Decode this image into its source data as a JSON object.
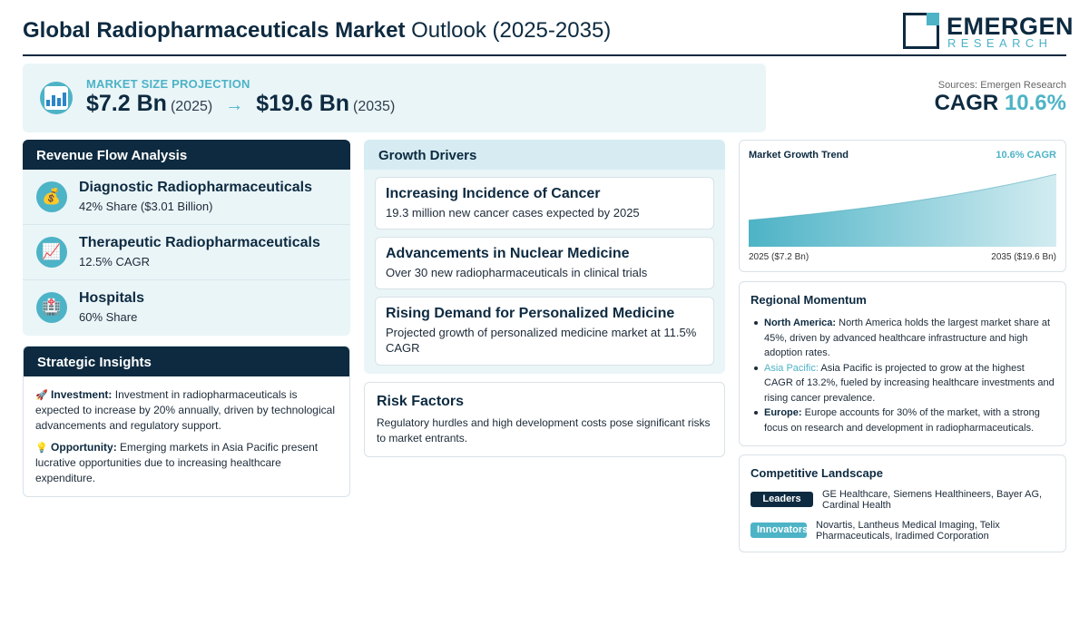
{
  "header": {
    "title_bold": "Global Radiopharmaceuticals Market",
    "title_rest": "Outlook (2025-2035)",
    "logo_name": "EMERGEN",
    "logo_sub": "RESEARCH"
  },
  "projection": {
    "icon": "bar-chart-icon",
    "label": "MARKET SIZE PROJECTION",
    "start_value": "$7.2 Bn",
    "start_year": "(2025)",
    "arrow": "→",
    "end_value": "$19.6 Bn",
    "end_year": "(2035)"
  },
  "summary": {
    "sources": "Sources: Emergen Research",
    "cagr_label": "CAGR",
    "cagr_value": "10.6%"
  },
  "revenue_flow": {
    "title": "Revenue Flow Analysis",
    "items": [
      {
        "icon": "money-bag-icon",
        "glyph": "💰",
        "name": "Diagnostic Radiopharmaceuticals",
        "detail": "42% Share ($3.01 Billion)"
      },
      {
        "icon": "trend-chart-icon",
        "glyph": "📈",
        "name": "Therapeutic Radiopharmaceuticals",
        "detail": "12.5% CAGR"
      },
      {
        "icon": "hospital-icon",
        "glyph": "🏥",
        "name": "Hospitals",
        "detail": "60% Share"
      }
    ]
  },
  "strategic": {
    "title": "Strategic Insights",
    "investment_glyph": "🚀",
    "investment_label": "Investment:",
    "investment_text": "Investment in radiopharmaceuticals is expected to increase by 20% annually, driven by technological advancements and regulatory support.",
    "opportunity_glyph": "💡",
    "opportunity_label": "Opportunity:",
    "opportunity_text": "Emerging markets in Asia Pacific present lucrative opportunities due to increasing healthcare expenditure."
  },
  "drivers": {
    "title": "Growth Drivers",
    "items": [
      {
        "title": "Increasing Incidence of Cancer",
        "desc": "19.3 million new cancer cases expected by 2025"
      },
      {
        "title": "Advancements in Nuclear Medicine",
        "desc": "Over 30 new radiopharmaceuticals in clinical trials"
      },
      {
        "title": "Rising Demand for Personalized Medicine",
        "desc": "Projected growth of personalized medicine market at 11.5% CAGR"
      }
    ]
  },
  "risk": {
    "title": "Risk Factors",
    "desc": "Regulatory hurdles and high development costs pose significant risks to market entrants."
  },
  "trend": {
    "title": "Market Growth Trend",
    "cagr": "10.6% CAGR",
    "start_label": "2025 ($7.2 Bn)",
    "end_label": "2035 ($19.6 Bn)"
  },
  "chart_data": {
    "type": "area",
    "x": [
      "2025",
      "2035"
    ],
    "values": [
      7.2,
      19.6
    ],
    "title": "Market Growth Trend",
    "color": "#4db3c6"
  },
  "regional": {
    "title": "Regional Momentum",
    "items": [
      {
        "region": "North America:",
        "text": "North America holds the largest market share at 45%, driven by advanced healthcare infrastructure and high adoption rates."
      },
      {
        "region": "Asia Pacific:",
        "text": "Asia Pacific is projected to grow at the highest CAGR of 13.2%, fueled by increasing healthcare investments and rising cancer prevalence."
      },
      {
        "region": "Europe:",
        "text": "Europe accounts for 30% of the market, with a strong focus on research and development in radiopharmaceuticals."
      }
    ]
  },
  "competitive": {
    "title": "Competitive Landscape",
    "leaders_label": "Leaders",
    "leaders": "GE Healthcare, Siemens Healthineers, Bayer AG, Cardinal Health",
    "innovators_label": "Innovators",
    "innovators": "Novartis, Lantheus Medical Imaging, Telix Pharmaceuticals, Iradimed Corporation"
  },
  "colors": {
    "navy": "#0d2a40",
    "teal": "#4db3c6",
    "panel": "#eaf5f8"
  }
}
